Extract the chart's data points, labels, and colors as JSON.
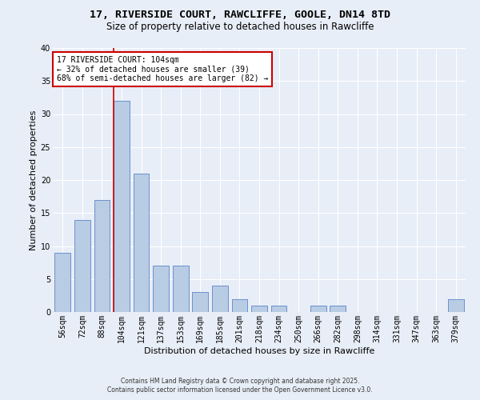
{
  "title": "17, RIVERSIDE COURT, RAWCLIFFE, GOOLE, DN14 8TD",
  "subtitle": "Size of property relative to detached houses in Rawcliffe",
  "xlabel": "Distribution of detached houses by size in Rawcliffe",
  "ylabel": "Number of detached properties",
  "categories": [
    "56sqm",
    "72sqm",
    "88sqm",
    "104sqm",
    "121sqm",
    "137sqm",
    "153sqm",
    "169sqm",
    "185sqm",
    "201sqm",
    "218sqm",
    "234sqm",
    "250sqm",
    "266sqm",
    "282sqm",
    "298sqm",
    "314sqm",
    "331sqm",
    "347sqm",
    "363sqm",
    "379sqm"
  ],
  "values": [
    9,
    14,
    17,
    32,
    21,
    7,
    7,
    3,
    4,
    2,
    1,
    1,
    0,
    1,
    1,
    0,
    0,
    0,
    0,
    0,
    2
  ],
  "bar_color": "#b8cce4",
  "bar_edgecolor": "#4472c4",
  "vline_x_index": 3,
  "vline_color": "#cc0000",
  "ylim": [
    0,
    40
  ],
  "yticks": [
    0,
    5,
    10,
    15,
    20,
    25,
    30,
    35,
    40
  ],
  "annotation_text": "17 RIVERSIDE COURT: 104sqm\n← 32% of detached houses are smaller (39)\n68% of semi-detached houses are larger (82) →",
  "annotation_box_color": "#ffffff",
  "annotation_box_edgecolor": "#cc0000",
  "footer1": "Contains HM Land Registry data © Crown copyright and database right 2025.",
  "footer2": "Contains public sector information licensed under the Open Government Licence v3.0.",
  "background_color": "#e8eef7",
  "grid_color": "#ffffff",
  "title_fontsize": 9.5,
  "subtitle_fontsize": 8.5,
  "tick_fontsize": 7,
  "ylabel_fontsize": 8,
  "xlabel_fontsize": 8,
  "annotation_fontsize": 7,
  "footer_fontsize": 5.5
}
